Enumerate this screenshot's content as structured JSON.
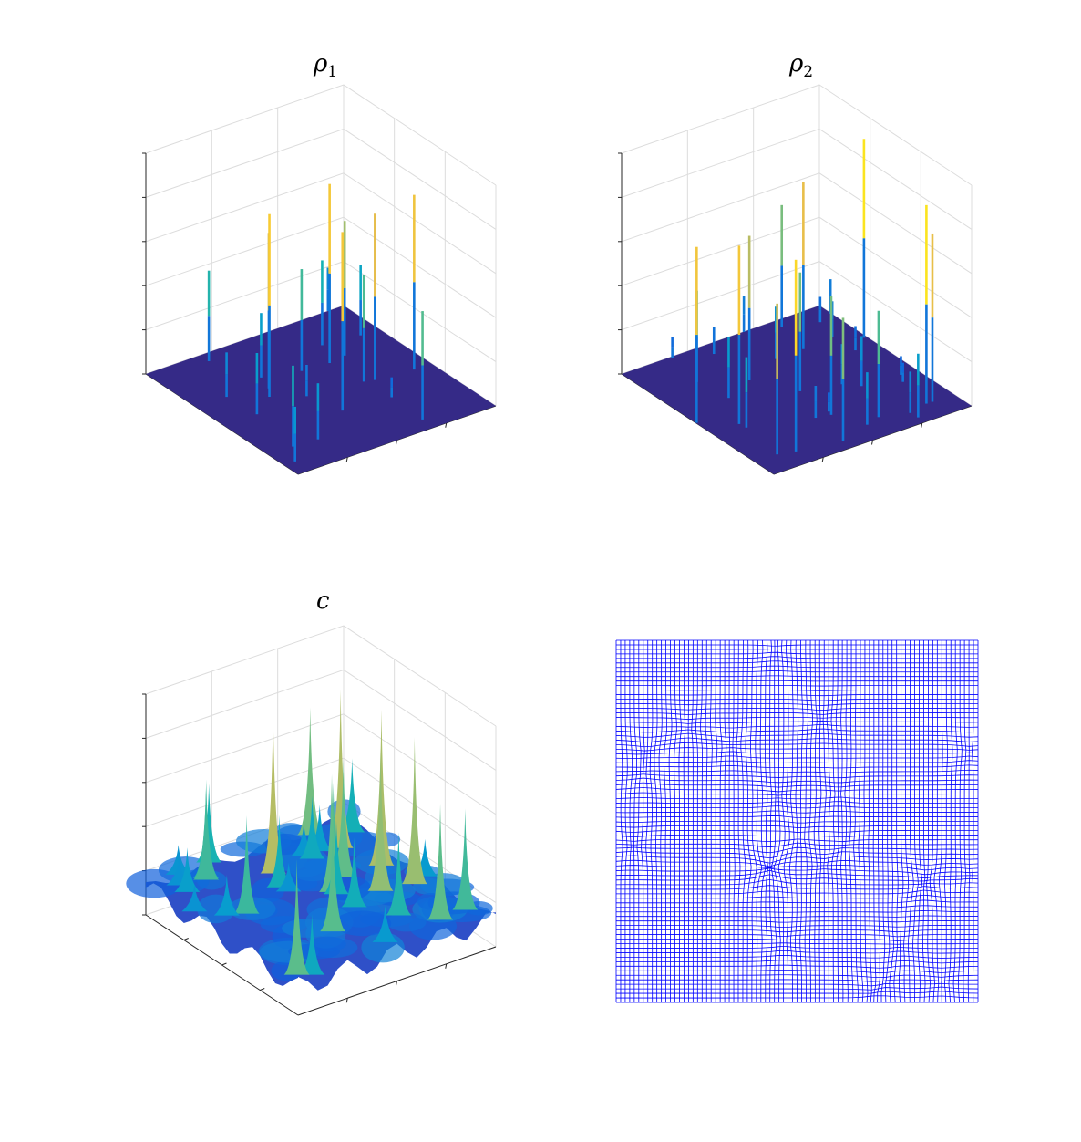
{
  "panels": [
    {
      "title": "ρ",
      "subscript": "1"
    },
    {
      "title": "ρ",
      "subscript": "2"
    },
    {
      "title": "c"
    }
  ]
}
